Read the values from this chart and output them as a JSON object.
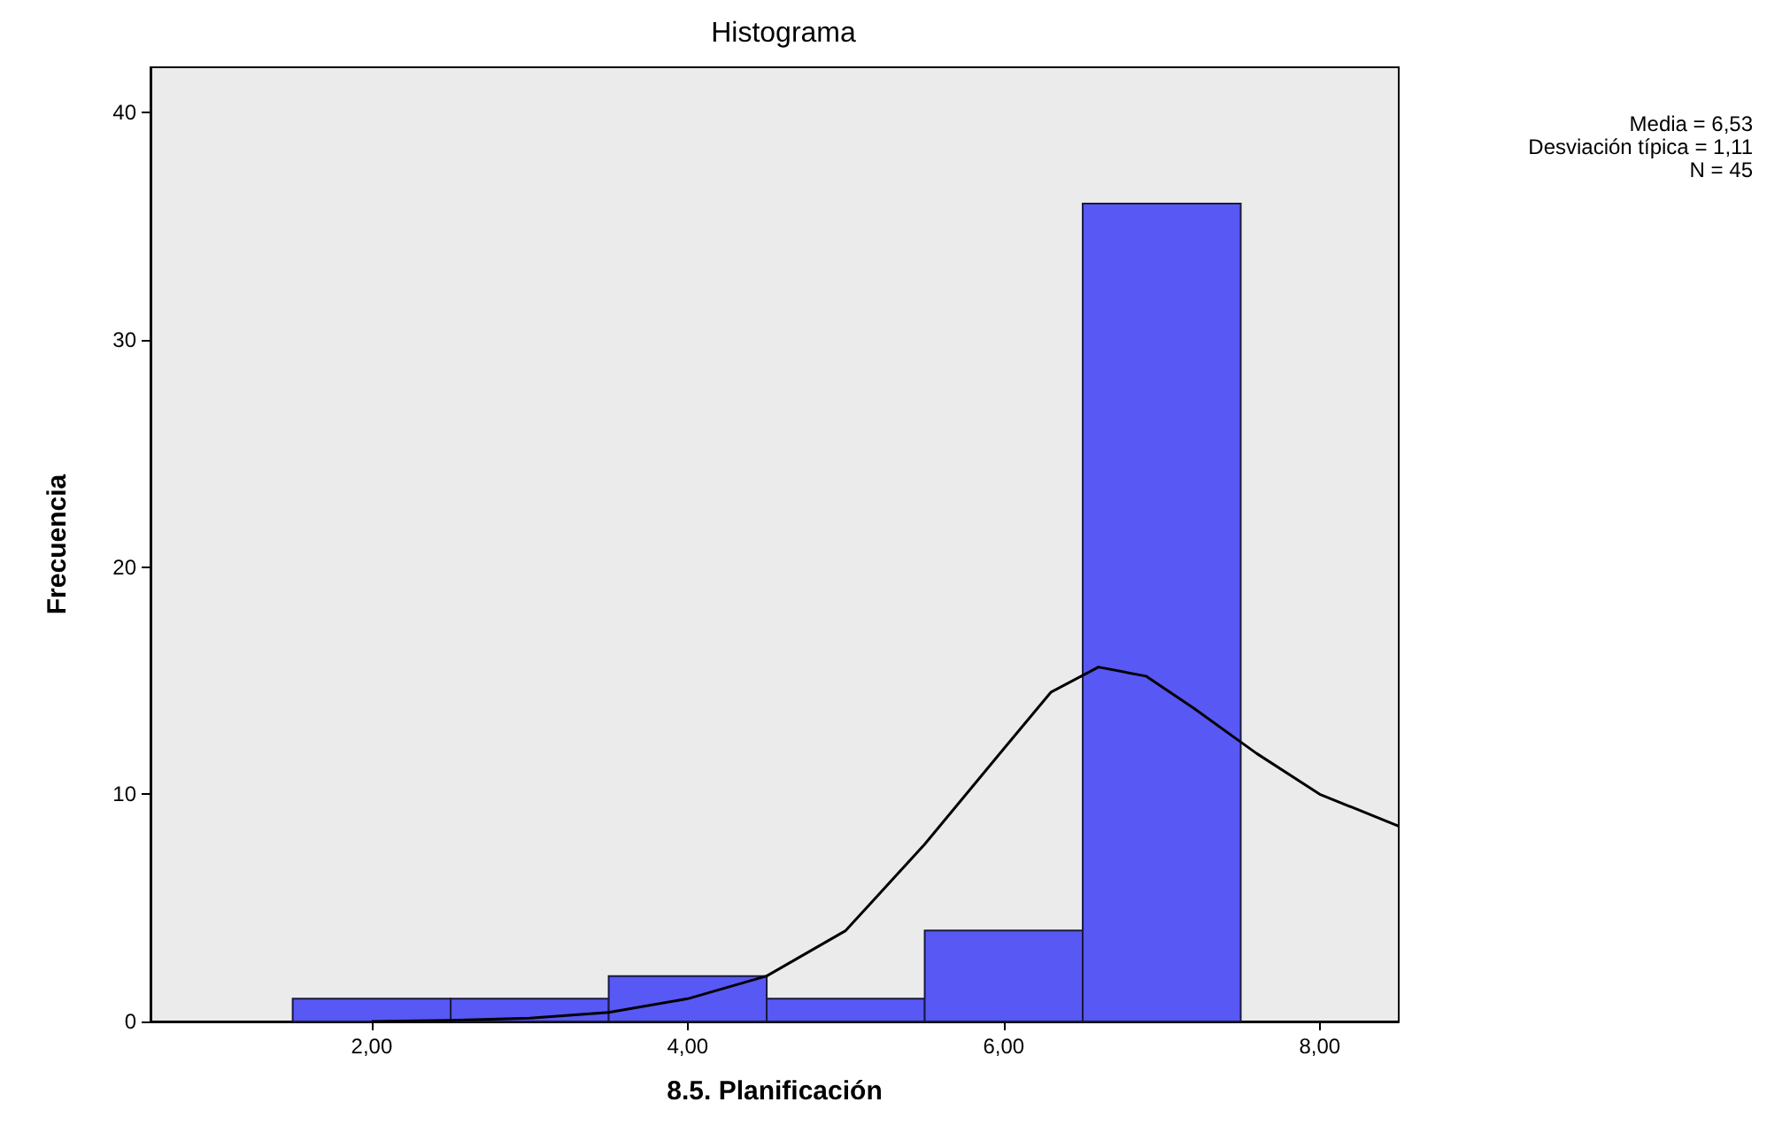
{
  "chart_data": {
    "type": "histogram",
    "title": "Histograma",
    "xlabel": "8.5. Planificación",
    "ylabel": "Frecuencia",
    "bins": [
      1.5,
      2.5,
      3.5,
      4.5,
      5.5,
      6.5,
      7.5
    ],
    "values": [
      1,
      1,
      2,
      1,
      4,
      36
    ],
    "color": "#5858f4",
    "series": [
      {
        "type": "line",
        "color": "#000000",
        "marker": "none",
        "x": [
          2.0,
          2.5,
          3.0,
          3.5,
          4.0,
          4.5,
          5.0,
          5.5,
          6.0,
          6.3,
          6.6,
          6.9,
          7.2,
          7.6,
          8.0,
          8.5
        ],
        "values": [
          0,
          0.05,
          0.15,
          0.4,
          1.0,
          2.0,
          4.0,
          7.8,
          12.0,
          14.5,
          15.6,
          15.2,
          13.8,
          11.8,
          10.0,
          8.6
        ]
      }
    ],
    "xlim": [
      0.6,
      8.5
    ],
    "xticks": [
      {
        "value": 2,
        "label": "2,00"
      },
      {
        "value": 4,
        "label": "4,00"
      },
      {
        "value": 6,
        "label": "6,00"
      },
      {
        "value": 8,
        "label": "8,00"
      }
    ],
    "ylim": [
      0,
      42
    ],
    "yticks": [
      0,
      10,
      20,
      30,
      40
    ],
    "grid": false,
    "annotations": [
      "Media = 6,53",
      "Desviación típica = 1,11",
      "N = 45"
    ]
  }
}
